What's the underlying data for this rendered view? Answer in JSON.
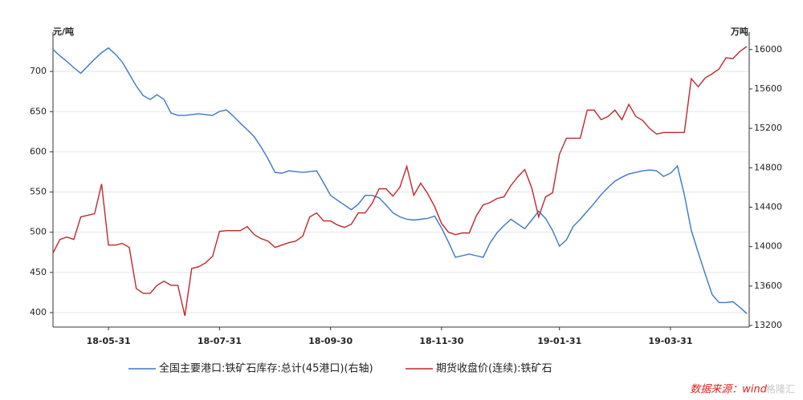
{
  "chart_data": {
    "type": "line",
    "y_label": "元/吨",
    "y2_label": "万吨",
    "categories": [
      null,
      null,
      null,
      null,
      null,
      null,
      null,
      null,
      "18-05-31",
      null,
      null,
      null,
      null,
      null,
      null,
      null,
      null,
      null,
      null,
      null,
      null,
      null,
      null,
      null,
      "18-07-31",
      null,
      null,
      null,
      null,
      null,
      null,
      null,
      null,
      null,
      null,
      null,
      null,
      null,
      null,
      null,
      "18-09-30",
      null,
      null,
      null,
      null,
      null,
      null,
      null,
      null,
      null,
      null,
      null,
      null,
      null,
      null,
      null,
      "18-11-30",
      null,
      null,
      null,
      null,
      null,
      null,
      null,
      null,
      null,
      null,
      null,
      null,
      null,
      null,
      null,
      null,
      "19-01-31",
      null,
      null,
      null,
      null,
      null,
      null,
      null,
      null,
      null,
      null,
      null,
      null,
      null,
      null,
      null,
      "19-03-31",
      null,
      null,
      null,
      null,
      null,
      null,
      null,
      null,
      null,
      null,
      null
    ],
    "series": [
      {
        "name": "全国主要港口:铁矿石库存:总计(45港口)(右轴)",
        "color": "#3a78c3",
        "axis": "y2",
        "values": [
          16000,
          15936,
          15879,
          15815,
          15759,
          15831,
          15903,
          15968,
          16016,
          15952,
          15871,
          15751,
          15630,
          15533,
          15493,
          15541,
          15493,
          15356,
          15332,
          15332,
          15340,
          15348,
          15340,
          15332,
          15372,
          15388,
          15324,
          15252,
          15187,
          15115,
          15010,
          14890,
          14753,
          14745,
          14769,
          14761,
          14753,
          14761,
          14769,
          14648,
          14520,
          14471,
          14423,
          14375,
          14431,
          14520,
          14520,
          14495,
          14423,
          14343,
          14302,
          14278,
          14270,
          14278,
          14286,
          14310,
          14190,
          14045,
          13892,
          13908,
          13924,
          13908,
          13892,
          14037,
          14141,
          14214,
          14278,
          14230,
          14182,
          14270,
          14359,
          14286,
          14165,
          14005,
          14069,
          14206,
          14278,
          14359,
          14439,
          14528,
          14600,
          14664,
          14705,
          14737,
          14753,
          14769,
          14777,
          14769,
          14713,
          14745,
          14817,
          14528,
          14165,
          13940,
          13723,
          13514,
          13433,
          13433,
          13441,
          13385,
          13321
        ]
      },
      {
        "name": "期货收盘价(连续):铁矿石",
        "color": "#c0272d",
        "values": [
          474,
          491,
          494,
          491,
          519,
          521,
          523,
          560,
          484,
          484,
          486,
          481,
          430,
          424,
          424,
          434,
          439,
          434,
          434,
          396,
          455,
          457,
          462,
          470,
          501,
          502,
          502,
          502,
          507,
          497,
          492,
          489,
          481,
          484,
          487,
          489,
          495,
          519,
          524,
          514,
          514,
          509,
          506,
          510,
          524,
          524,
          536,
          554,
          554,
          545,
          556,
          582,
          546,
          561,
          548,
          532,
          511,
          500,
          497,
          499,
          499,
          520,
          534,
          537,
          542,
          544,
          558,
          569,
          578,
          555,
          519,
          544,
          549,
          597,
          617,
          617,
          617,
          652,
          652,
          640,
          644,
          652,
          640,
          659,
          644,
          639,
          629,
          622,
          624,
          624,
          624,
          624,
          691,
          681,
          692,
          697,
          703,
          717,
          716,
          725,
          731
        ]
      }
    ],
    "ylim": [
      382,
      749
    ],
    "yticks": [
      400,
      450,
      500,
      550,
      600,
      650,
      700
    ],
    "y2lim": [
      13184,
      16177
    ],
    "y2ticks": [
      13200,
      13600,
      14000,
      14400,
      14800,
      15200,
      15600,
      16000
    ],
    "grid": true,
    "source": "数据来源：wind",
    "watermark": "格隆汇"
  }
}
